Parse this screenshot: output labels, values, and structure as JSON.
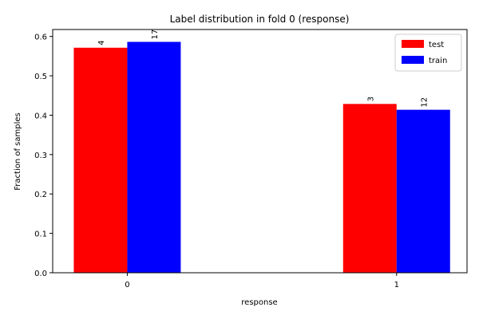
{
  "chart_data": {
    "type": "bar",
    "title": "Label distribution in fold 0 (response)",
    "xlabel": "response",
    "ylabel": "Fraction of samples",
    "categories": [
      "0",
      "1"
    ],
    "ylim": [
      0,
      0.6176
    ],
    "yticks": [
      0.0,
      0.1,
      0.2,
      0.3,
      0.4,
      0.5,
      0.6
    ],
    "ytick_labels": [
      "0.0",
      "0.1",
      "0.2",
      "0.3",
      "0.4",
      "0.5",
      "0.6"
    ],
    "series": [
      {
        "name": "test",
        "color": "#ff0000",
        "values": [
          0.5714,
          0.4286
        ],
        "labels": [
          "4",
          "3"
        ]
      },
      {
        "name": "train",
        "color": "#0000ff",
        "values": [
          0.5862,
          0.4138
        ],
        "labels": [
          "17",
          "12"
        ]
      }
    ],
    "legend": {
      "position": "top-right",
      "entries": [
        "test",
        "train"
      ]
    },
    "grid": false
  }
}
